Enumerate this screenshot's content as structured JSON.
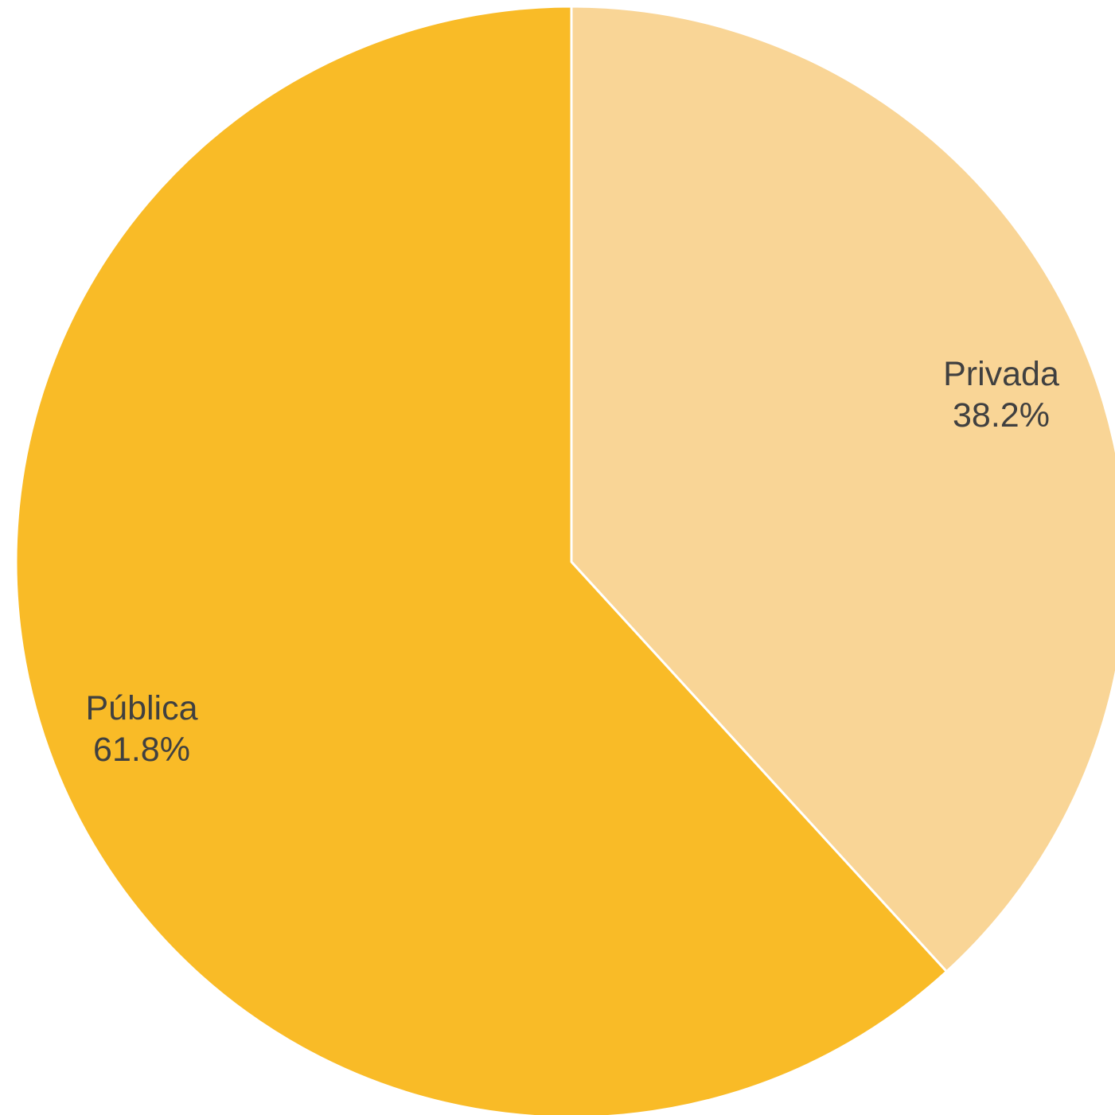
{
  "chart_data": {
    "type": "pie",
    "title": "",
    "start_angle_deg": 0,
    "direction": "clockwise",
    "slices": [
      {
        "label": "Privada",
        "value": 38.2,
        "value_label": "38.2%",
        "color": "#F9D596"
      },
      {
        "label": "Pública",
        "value": 61.8,
        "value_label": "61.8%",
        "color": "#F9BB27"
      }
    ],
    "slice_border_color": "#FFFFFF"
  }
}
